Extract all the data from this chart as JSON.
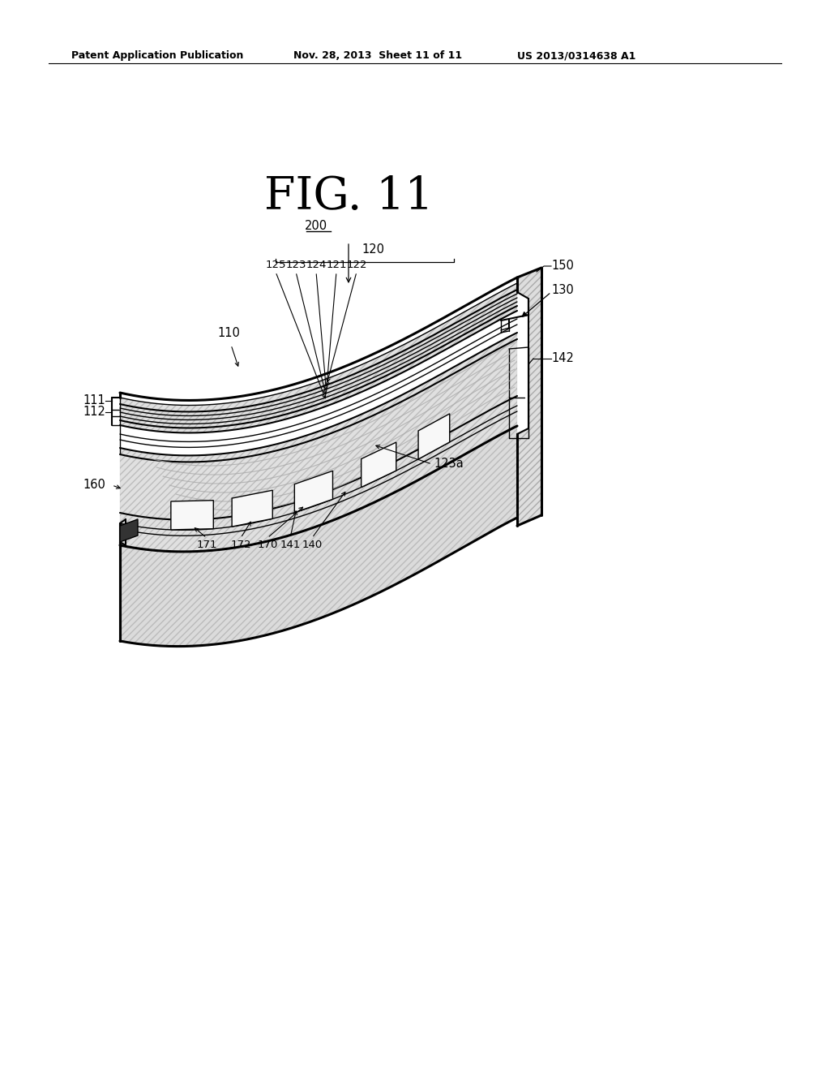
{
  "title": "FIG. 11",
  "header_left": "Patent Application Publication",
  "header_center": "Nov. 28, 2013  Sheet 11 of 11",
  "header_right": "US 2013/0314638 A1",
  "background_color": "#ffffff",
  "line_color": "#000000",
  "fig_label": "200",
  "layer_labels": [
    "125",
    "123",
    "124",
    "121",
    "122"
  ],
  "right_labels": [
    "150",
    "130",
    "142"
  ],
  "left_labels": [
    "111",
    "112"
  ],
  "bottom_labels": [
    "171",
    "172",
    "170",
    "141",
    "140"
  ],
  "curve_label": "123a",
  "assembly_label": "110",
  "back_label": "160",
  "group_label": "120"
}
